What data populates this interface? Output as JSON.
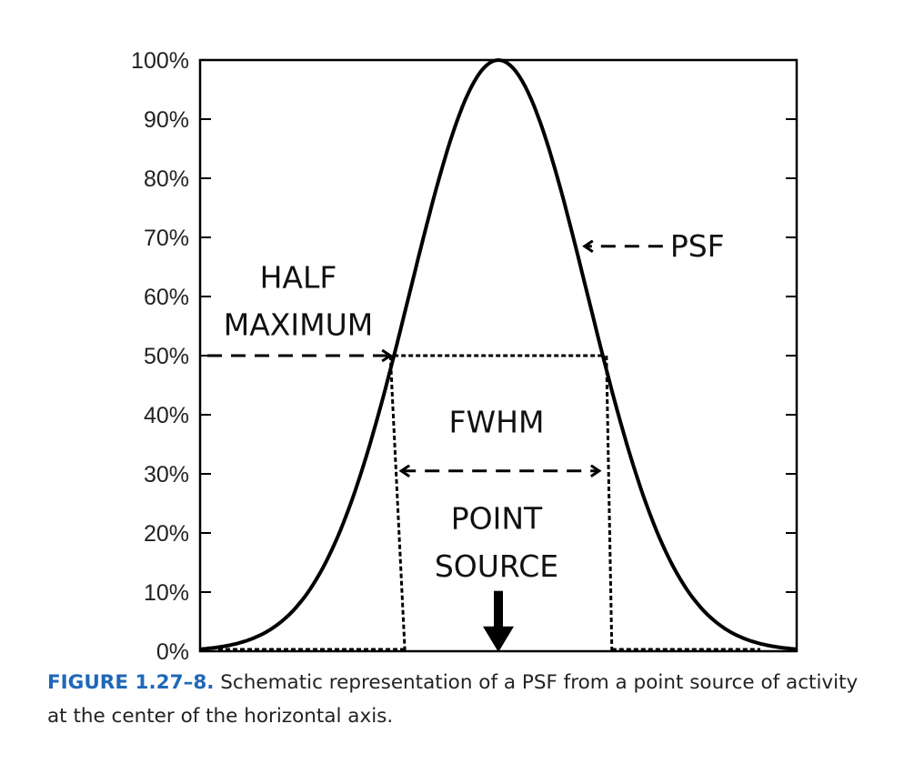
{
  "chart_data": {
    "type": "line",
    "curve": "gaussian",
    "x_range": [
      -1,
      1
    ],
    "ylim": [
      0,
      100
    ],
    "yticks": [
      "0%",
      "10%",
      "20%",
      "30%",
      "40%",
      "50%",
      "60%",
      "70%",
      "80%",
      "90%",
      "100%"
    ],
    "peak_value": 100,
    "half_maximum_value": 50,
    "fwhm_x": [
      -0.35,
      0.35
    ],
    "grid": false,
    "annotations": {
      "half_maximum_line1": "HALF",
      "half_maximum_line2": "MAXIMUM",
      "psf": "PSF",
      "fwhm": "FWHM",
      "point_source_line1": "POINT",
      "point_source_line2": "SOURCE"
    }
  },
  "caption": {
    "label": "FIGURE 1.27–8.",
    "text": " Schematic representation of a PSF from a point source of activity at the center of the horizontal axis."
  },
  "colors": {
    "curve": "#000000",
    "caption_label": "#1f68b8"
  }
}
